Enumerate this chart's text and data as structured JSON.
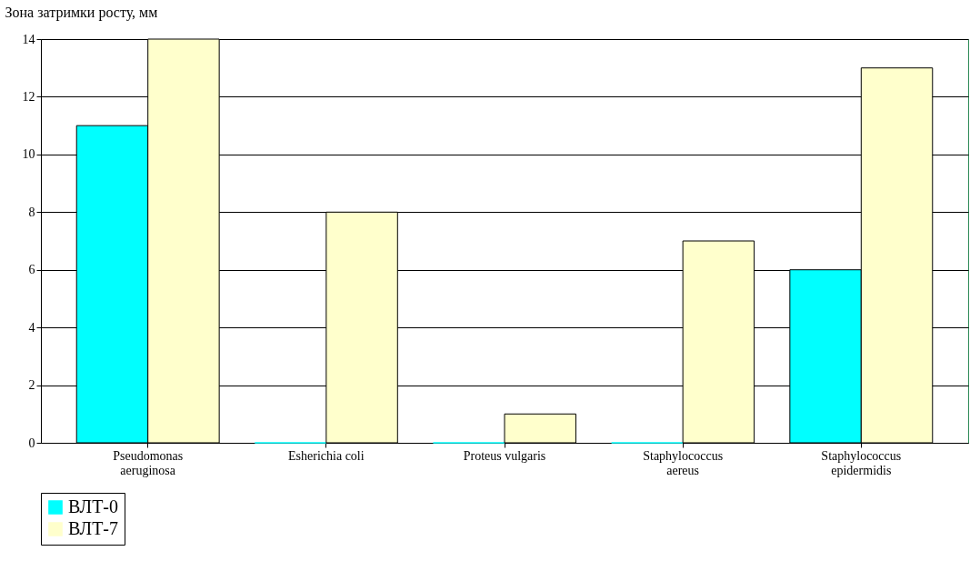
{
  "chart_data": {
    "type": "bar",
    "ylabel": "Зона затримки росту, мм",
    "categories": [
      "Pseudomonas aeruginosa",
      "Esherichia coli",
      "Proteus vulgaris",
      "Staphylococcus aereus",
      "Staphylococcus epidermidis"
    ],
    "series": [
      {
        "name": "ВЛТ-0",
        "color": "#00ffff",
        "values": [
          11,
          0,
          0,
          0,
          6
        ]
      },
      {
        "name": "ВЛТ-7",
        "color": "#ffffcc",
        "values": [
          14,
          8,
          1,
          7,
          13
        ]
      }
    ],
    "ylim": [
      0,
      14
    ],
    "yticks": [
      0,
      2,
      4,
      6,
      8,
      10,
      12,
      14
    ],
    "grid": "y",
    "legend": "bottom"
  }
}
